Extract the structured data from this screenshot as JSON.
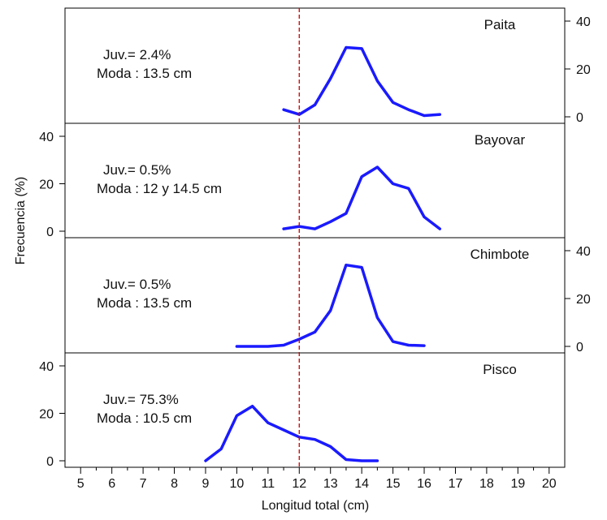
{
  "chart_data": {
    "type": "line",
    "xlabel": "Longitud total (cm)",
    "ylabel": "Frecuencia (%)",
    "xlim": [
      4.5,
      20.5
    ],
    "x_ticks": [
      "5",
      "6",
      "7",
      "8",
      "9",
      "10",
      "11",
      "12",
      "13",
      "14",
      "15",
      "16",
      "17",
      "18",
      "19",
      "20"
    ],
    "y_ticks": [
      "0",
      "20",
      "40"
    ],
    "ylim": [
      0,
      40
    ],
    "reference_line_x": 12,
    "colors": {
      "line": "#1a1aff",
      "reference_line": "#cc0000",
      "frame": "#000000"
    },
    "panels": [
      {
        "name": "Paita",
        "y_axis_side": "right",
        "annotation_juv": "Juv.= 2.4%",
        "annotation_moda": "Moda : 13.5 cm",
        "x": [
          11.5,
          12,
          12.5,
          13,
          13.5,
          14,
          14.5,
          15,
          15.5,
          16,
          16.5
        ],
        "values": [
          3,
          1,
          5,
          16,
          29,
          28.5,
          15,
          6,
          3,
          0.5,
          1
        ]
      },
      {
        "name": "Bayovar",
        "y_axis_side": "left",
        "annotation_juv": "Juv.= 0.5%",
        "annotation_moda": "Moda : 12 y 14.5 cm",
        "x": [
          11.5,
          12,
          12.5,
          13,
          13.5,
          14,
          14.5,
          15,
          15.5,
          16,
          16.5
        ],
        "values": [
          1,
          2,
          1,
          4,
          7.5,
          23,
          27,
          20,
          18,
          6,
          1
        ]
      },
      {
        "name": "Chimbote",
        "y_axis_side": "right",
        "annotation_juv": "Juv.= 0.5%",
        "annotation_moda": "Moda : 13.5 cm",
        "x": [
          10,
          10.5,
          11,
          11.5,
          12,
          12.5,
          13,
          13.5,
          14,
          14.5,
          15,
          15.5,
          16
        ],
        "values": [
          0,
          0,
          0,
          0.5,
          3,
          6,
          15,
          34,
          33,
          12,
          2,
          0.5,
          0.3
        ]
      },
      {
        "name": "Pisco",
        "y_axis_side": "left",
        "annotation_juv": "Juv.= 75.3%",
        "annotation_moda": "Moda : 10.5 cm",
        "x": [
          9,
          9.5,
          10,
          10.5,
          11,
          11.5,
          12,
          12.5,
          13,
          13.5,
          14,
          14.5
        ],
        "values": [
          0,
          5,
          19,
          23,
          16,
          13,
          10,
          9,
          6,
          0.5,
          0,
          0
        ]
      }
    ]
  }
}
